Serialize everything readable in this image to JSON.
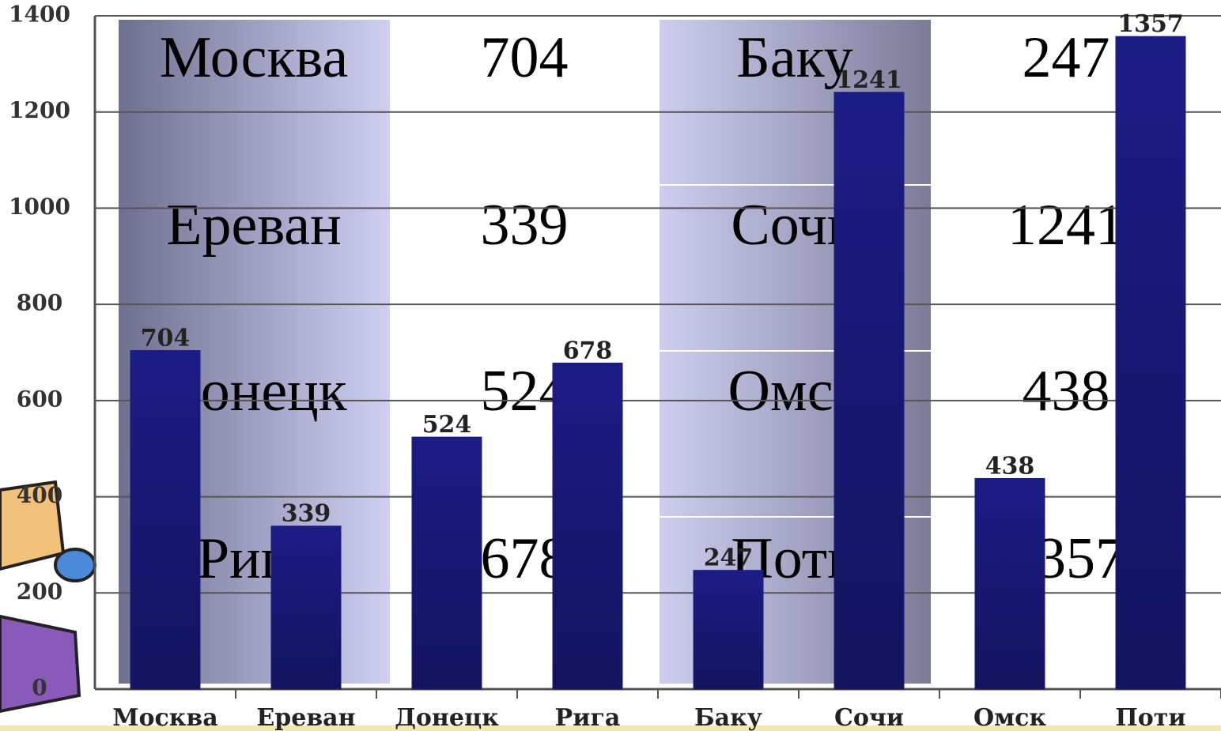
{
  "chart_data": {
    "type": "bar",
    "categories": [
      "Москва",
      "Ереван",
      "Донецк",
      "Рига",
      "Баку",
      "Сочи",
      "Омск",
      "Поти"
    ],
    "values": [
      704,
      339,
      524,
      678,
      247,
      1241,
      438,
      1357
    ],
    "color": "#1b1b80",
    "ylim": [
      0,
      1400
    ],
    "yticks": [
      0,
      200,
      400,
      600,
      800,
      1000,
      1200,
      1400
    ],
    "grid": true
  }
}
